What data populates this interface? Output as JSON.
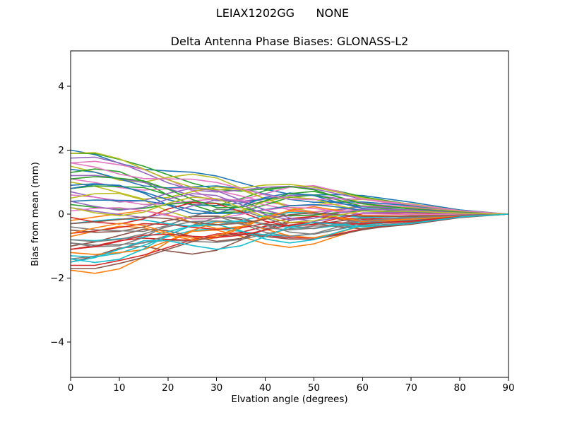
{
  "figure": {
    "suptitle": "LEIAX1202GG      NONE",
    "title": "Delta Antenna Phase Biases: GLONASS-L2",
    "xlabel": "Elvation angle (degrees)",
    "ylabel": "Bias from mean (mm)",
    "background_color": "#ffffff",
    "spine_color": "#000000"
  },
  "chart_data": {
    "type": "line",
    "suptitle": "LEIAX1202GG      NONE",
    "title": "Delta Antenna Phase Biases: GLONASS-L2",
    "xlabel": "Elvation angle (degrees)",
    "ylabel": "Bias from mean (mm)",
    "xlim": [
      0,
      90
    ],
    "ylim": [
      -5.1,
      5.1
    ],
    "xticks": [
      0,
      10,
      20,
      30,
      40,
      50,
      60,
      70,
      80,
      90
    ],
    "yticks": [
      -4,
      -2,
      0,
      2,
      4
    ],
    "grid": false,
    "legend": "none",
    "line_width": 1.6,
    "palette": [
      "#1f77b4",
      "#ff7f0e",
      "#2ca02c",
      "#d62728",
      "#9467bd",
      "#8c564b",
      "#e377c2",
      "#7f7f7f",
      "#bcbd22",
      "#17becf"
    ],
    "x": [
      0,
      5,
      10,
      15,
      20,
      25,
      30,
      35,
      40,
      45,
      50,
      55,
      60,
      70,
      80,
      90
    ],
    "series": [
      [
        2.0,
        1.86,
        1.59,
        1.4,
        1.35,
        1.31,
        1.19,
        0.98,
        0.77,
        0.63,
        0.6,
        0.61,
        0.58,
        0.37,
        0.13,
        0.0
      ],
      [
        -1.75,
        -1.85,
        -1.71,
        -1.34,
        -0.87,
        -0.54,
        -0.5,
        -0.69,
        -0.93,
        -1.04,
        -0.93,
        -0.68,
        -0.45,
        -0.24,
        -0.09,
        0.0
      ],
      [
        1.9,
        1.89,
        1.71,
        1.5,
        1.23,
        0.97,
        0.77,
        0.72,
        0.79,
        0.86,
        0.85,
        0.72,
        0.54,
        0.3,
        0.1,
        0.0
      ],
      [
        -1.6,
        -1.6,
        -1.45,
        -1.28,
        -1.04,
        -0.8,
        -0.62,
        -0.59,
        -0.66,
        -0.74,
        -0.74,
        -0.62,
        -0.46,
        -0.25,
        -0.09,
        0.0
      ],
      [
        1.75,
        1.78,
        1.6,
        1.3,
        0.98,
        0.75,
        0.69,
        0.75,
        0.84,
        0.87,
        0.79,
        0.63,
        0.47,
        0.27,
        0.1,
        0.0
      ],
      [
        -1.5,
        -1.31,
        -1.06,
        -1.0,
        -1.15,
        -1.25,
        -1.13,
        -0.81,
        -0.47,
        -0.26,
        -0.28,
        -0.4,
        -0.46,
        -0.32,
        -0.11,
        0.0
      ],
      [
        1.6,
        1.65,
        1.54,
        1.4,
        1.09,
        0.73,
        0.45,
        0.44,
        0.64,
        0.84,
        0.89,
        0.71,
        0.47,
        0.24,
        0.09,
        0.0
      ],
      [
        -1.4,
        -1.31,
        -1.1,
        -0.88,
        -0.82,
        -0.85,
        -0.88,
        -0.79,
        -0.63,
        -0.46,
        -0.37,
        -0.37,
        -0.38,
        -0.26,
        -0.09,
        0.0
      ],
      [
        1.5,
        1.31,
        1.06,
        1.0,
        1.15,
        1.25,
        1.13,
        0.81,
        0.47,
        0.26,
        0.28,
        0.4,
        0.46,
        0.32,
        0.11,
        0.0
      ],
      [
        -1.3,
        -1.34,
        -1.22,
        -0.98,
        -0.7,
        -0.51,
        -0.46,
        -0.54,
        -0.65,
        -0.69,
        -0.62,
        -0.48,
        -0.34,
        -0.19,
        -0.07,
        0.0
      ],
      [
        1.4,
        1.31,
        1.1,
        0.88,
        0.82,
        0.85,
        0.88,
        0.79,
        0.63,
        0.46,
        0.37,
        0.37,
        0.38,
        0.26,
        0.09,
        0.0
      ],
      [
        -1.2,
        -1.26,
        -1.2,
        -1.11,
        -0.84,
        -0.51,
        -0.25,
        -0.25,
        -0.47,
        -0.68,
        -0.74,
        -0.58,
        -0.36,
        -0.17,
        -0.06,
        0.0
      ],
      [
        1.3,
        1.41,
        1.33,
        1.02,
        0.59,
        0.3,
        0.27,
        0.48,
        0.74,
        0.86,
        0.76,
        0.53,
        0.32,
        0.16,
        0.06,
        0.0
      ],
      [
        -1.1,
        -0.99,
        -0.83,
        -0.75,
        -0.79,
        -0.82,
        -0.74,
        -0.57,
        -0.38,
        -0.27,
        -0.27,
        -0.31,
        -0.33,
        -0.22,
        -0.08,
        0.0
      ],
      [
        1.2,
        1.21,
        1.11,
        0.99,
        0.79,
        0.58,
        0.42,
        0.4,
        0.49,
        0.58,
        0.59,
        0.49,
        0.35,
        0.18,
        0.06,
        0.0
      ],
      [
        -1.0,
        -0.87,
        -0.67,
        -0.47,
        -0.52,
        -0.7,
        -0.85,
        -0.76,
        -0.48,
        -0.2,
        -0.07,
        -0.15,
        -0.26,
        -0.2,
        -0.07,
        0.0
      ],
      [
        1.1,
        0.99,
        0.83,
        0.75,
        0.79,
        0.82,
        0.74,
        0.57,
        0.38,
        0.27,
        0.27,
        0.31,
        0.33,
        0.22,
        0.08,
        0.0
      ],
      [
        -0.9,
        -1.02,
        -0.99,
        -0.73,
        -0.34,
        -0.08,
        -0.07,
        -0.29,
        -0.57,
        -0.7,
        -0.61,
        -0.4,
        -0.21,
        -0.09,
        -0.03,
        0.0
      ],
      [
        1.0,
        0.87,
        0.67,
        0.47,
        0.52,
        0.7,
        0.85,
        0.76,
        0.48,
        0.2,
        0.07,
        0.15,
        0.26,
        0.2,
        0.07,
        0.0
      ],
      [
        -0.8,
        -0.83,
        -0.77,
        -0.71,
        -0.55,
        -0.36,
        -0.22,
        -0.22,
        -0.31,
        -0.42,
        -0.45,
        -0.35,
        -0.23,
        -0.12,
        -0.04,
        0.0
      ],
      [
        0.9,
        0.95,
        0.88,
        0.69,
        0.45,
        0.29,
        0.26,
        0.35,
        0.48,
        0.53,
        0.47,
        0.35,
        0.23,
        0.12,
        0.04,
        0.0
      ],
      [
        -0.7,
        -0.53,
        -0.38,
        -0.42,
        -0.65,
        -0.81,
        -0.73,
        -0.44,
        -0.12,
        0.06,
        0.02,
        -0.13,
        -0.24,
        -0.18,
        -0.06,
        0.0
      ],
      [
        0.8,
        0.88,
        0.86,
        0.83,
        0.6,
        0.29,
        0.05,
        0.07,
        0.29,
        0.52,
        0.6,
        0.44,
        0.24,
        0.11,
        0.04,
        0.0
      ],
      [
        -0.6,
        -0.53,
        -0.42,
        -0.3,
        -0.32,
        -0.41,
        -0.48,
        -0.43,
        -0.29,
        -0.14,
        -0.07,
        -0.11,
        -0.16,
        -0.12,
        -0.05,
        0.0
      ],
      [
        0.7,
        0.53,
        0.38,
        0.42,
        0.65,
        0.81,
        0.73,
        0.44,
        0.12,
        -0.06,
        -0.02,
        0.13,
        0.24,
        0.18,
        0.06,
        0.0
      ],
      [
        -0.5,
        -0.57,
        -0.54,
        -0.4,
        -0.2,
        -0.07,
        -0.06,
        -0.17,
        -0.31,
        -0.37,
        -0.33,
        -0.22,
        -0.12,
        -0.06,
        -0.02,
        0.0
      ],
      [
        0.6,
        0.53,
        0.42,
        0.3,
        0.32,
        0.41,
        0.48,
        0.43,
        0.29,
        0.14,
        0.07,
        0.11,
        0.16,
        0.12,
        0.05,
        0.0
      ],
      [
        -0.4,
        -0.49,
        -0.52,
        -0.54,
        -0.35,
        -0.07,
        0.15,
        0.12,
        -0.12,
        -0.36,
        -0.45,
        -0.31,
        -0.13,
        -0.04,
        -0.01,
        0.0
      ],
      [
        0.5,
        0.64,
        0.65,
        0.44,
        0.09,
        -0.14,
        -0.13,
        0.11,
        0.4,
        0.54,
        0.47,
        0.27,
        0.1,
        0.03,
        0.01,
        0.0
      ],
      [
        -0.3,
        -0.21,
        -0.15,
        -0.18,
        -0.3,
        -0.38,
        -0.34,
        -0.2,
        -0.04,
        0.05,
        0.03,
        -0.05,
        -0.1,
        -0.08,
        -0.03,
        0.0
      ],
      [
        0.4,
        0.44,
        0.43,
        0.42,
        0.3,
        0.14,
        0.02,
        0.03,
        0.14,
        0.26,
        0.3,
        0.22,
        0.12,
        0.05,
        0.01,
        0.0
      ],
      [
        -0.2,
        -0.09,
        0.01,
        0.11,
        -0.02,
        -0.26,
        -0.45,
        -0.39,
        -0.14,
        0.12,
        0.23,
        0.11,
        -0.04,
        -0.06,
        -0.02,
        0.0
      ],
      [
        0.3,
        0.21,
        0.15,
        0.18,
        0.3,
        0.38,
        0.34,
        0.2,
        0.04,
        -0.05,
        -0.03,
        0.05,
        0.1,
        0.08,
        0.03,
        0.0
      ],
      [
        -0.1,
        -0.25,
        -0.31,
        -0.15,
        0.16,
        0.36,
        0.33,
        0.07,
        -0.22,
        -0.38,
        -0.32,
        -0.13,
        0.01,
        0.04,
        0.01,
        0.0
      ],
      [
        0.2,
        0.09,
        -0.01,
        -0.11,
        0.02,
        0.26,
        0.45,
        0.39,
        0.14,
        -0.12,
        -0.23,
        -0.11,
        0.04,
        0.06,
        0.02,
        0.0
      ],
      [
        -1.7,
        -1.7,
        -1.54,
        -1.35,
        -1.1,
        -0.86,
        -0.67,
        -0.63,
        -0.7,
        -0.78,
        -0.78,
        -0.65,
        -0.49,
        -0.27,
        -0.09,
        0.0
      ],
      [
        0.1,
        0.18,
        0.2,
        0.11,
        -0.05,
        -0.15,
        -0.14,
        -0.01,
        0.13,
        0.21,
        0.18,
        0.08,
        0.01,
        -0.01,
        0.0,
        0.0
      ],
      [
        -0.9,
        -0.97,
        -0.95,
        -0.9,
        -0.66,
        -0.35,
        -0.1,
        -0.11,
        -0.34,
        -0.56,
        -0.63,
        -0.48,
        -0.27,
        -0.12,
        -0.04,
        0.0
      ],
      [
        1.9,
        1.92,
        1.73,
        1.41,
        1.07,
        0.84,
        0.76,
        0.81,
        0.91,
        0.93,
        0.84,
        0.68,
        0.51,
        0.29,
        0.1,
        0.0
      ],
      [
        -1.4,
        -1.51,
        -1.41,
        -1.09,
        -0.65,
        -0.35,
        -0.32,
        -0.52,
        -0.78,
        -0.9,
        -0.8,
        -0.56,
        -0.35,
        -0.18,
        -0.06,
        0.0
      ],
      [
        0.8,
        0.93,
        0.9,
        0.66,
        0.28,
        0.02,
        0.02,
        0.25,
        0.52,
        0.66,
        0.58,
        0.36,
        0.18,
        0.08,
        0.03,
        0.0
      ],
      [
        -0.6,
        -0.43,
        -0.29,
        -0.35,
        -0.59,
        -0.75,
        -0.68,
        -0.4,
        -0.08,
        0.1,
        0.06,
        -0.1,
        -0.21,
        -0.16,
        -0.06,
        0.0
      ],
      [
        1.1,
        1.17,
        1.12,
        1.04,
        0.78,
        0.46,
        0.2,
        0.21,
        0.42,
        0.64,
        0.71,
        0.54,
        0.33,
        0.16,
        0.06,
        0.0
      ],
      [
        -1.1,
        -1.02,
        -0.85,
        -0.66,
        -0.63,
        -0.69,
        -0.73,
        -0.66,
        -0.5,
        -0.34,
        -0.26,
        -0.27,
        -0.3,
        -0.21,
        -0.08,
        0.0
      ],
      [
        0.4,
        0.24,
        0.12,
        0.21,
        0.47,
        0.64,
        0.58,
        0.3,
        -0.01,
        -0.18,
        -0.13,
        0.03,
        0.15,
        0.13,
        0.04,
        0.0
      ],
      [
        -0.3,
        -0.24,
        -0.17,
        -0.09,
        -0.14,
        -0.25,
        -0.33,
        -0.29,
        -0.16,
        -0.02,
        0.04,
        -0.01,
        -0.07,
        -0.07,
        -0.03,
        0.0
      ],
      [
        1.6,
        1.47,
        1.25,
        1.11,
        1.1,
        1.09,
        0.99,
        0.8,
        0.6,
        0.47,
        0.45,
        0.48,
        0.47,
        0.3,
        0.11,
        0.0
      ],
      [
        -0.8,
        -0.86,
        -0.79,
        -0.62,
        -0.39,
        -0.23,
        -0.21,
        -0.31,
        -0.43,
        -0.49,
        -0.44,
        -0.31,
        -0.2,
        -0.11,
        -0.04,
        0.0
      ],
      [
        0.2,
        0.04,
        -0.05,
        0.06,
        0.34,
        0.53,
        0.48,
        0.21,
        -0.09,
        -0.26,
        -0.21,
        -0.03,
        0.1,
        0.09,
        0.03,
        0.0
      ],
      [
        -1.5,
        -1.36,
        -1.1,
        -0.83,
        -0.83,
        -0.98,
        -1.1,
        -0.99,
        -0.7,
        -0.4,
        -0.26,
        -0.32,
        -0.4,
        -0.29,
        -0.09,
        0.0
      ]
    ]
  }
}
